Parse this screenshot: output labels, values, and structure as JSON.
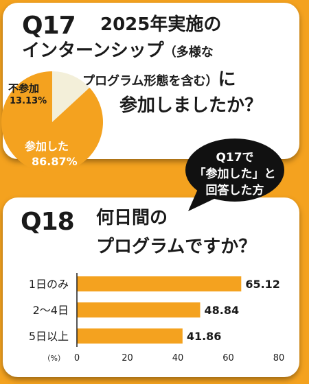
{
  "q17": {
    "number": "Q17",
    "line1": "2025年実施の",
    "line2_main": "インターンシップ",
    "line2_paren": "（多様な",
    "line3_paren": "プログラム形態を含む）",
    "line3_tail": "に",
    "line4": "参加しましたか？"
  },
  "bubble": {
    "line1": "Q17で",
    "line2": "「参加した」と",
    "line3": "回答した方"
  },
  "q18": {
    "number": "Q18",
    "line1": "何日間の",
    "line2": "プログラムですか？"
  },
  "colors": {
    "accent": "#f4a21f",
    "minor_slice": "#f3efd9",
    "text": "#1a1a1a"
  },
  "chart_data": [
    {
      "type": "pie",
      "slices": [
        {
          "label": "不参加",
          "value": 13.13,
          "value_label": "13.13%",
          "color": "#f3efd9"
        },
        {
          "label": "参加した",
          "value": 86.87,
          "value_label": "86.87%",
          "color": "#f4a21f"
        }
      ]
    },
    {
      "type": "bar",
      "orientation": "horizontal",
      "categories": [
        "1日のみ",
        "2〜4日",
        "5日以上"
      ],
      "values": [
        65.12,
        48.84,
        41.86
      ],
      "value_labels": [
        "65.12",
        "48.84",
        "41.86"
      ],
      "unit_label": "（%）",
      "xlim": [
        0,
        80
      ],
      "ticks": [
        "0",
        "20",
        "40",
        "60",
        "80"
      ],
      "grid": false
    }
  ]
}
